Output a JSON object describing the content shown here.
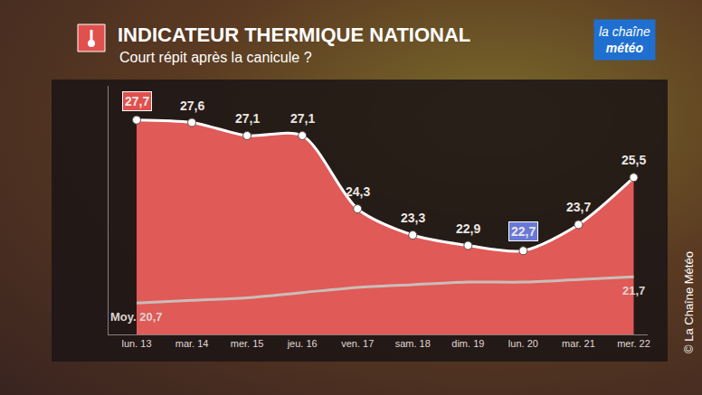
{
  "chart_data": {
    "type": "area",
    "title": "INDICATEUR THERMIQUE NATIONAL",
    "subtitle": "Court répit après la canicule ?",
    "logo": [
      "la chaîne",
      "météo"
    ],
    "copyright": "© La Chaîne Météo",
    "categories": [
      "lun. 13",
      "mar. 14",
      "mer. 15",
      "jeu. 16",
      "ven. 17",
      "sam. 18",
      "dim. 19",
      "lun. 20",
      "mar. 21",
      "mer. 22"
    ],
    "series": [
      {
        "type": "area",
        "color": "#e05a57",
        "values": [
          27.7,
          27.6,
          27.1,
          27.1,
          24.3,
          23.3,
          22.9,
          22.7,
          23.7,
          25.5
        ],
        "value_labels": [
          "27,7",
          "27,6",
          "27,1",
          "27,1",
          "24,3",
          "23,3",
          "22,9",
          "22,7",
          "23,7",
          "25,5"
        ]
      },
      {
        "type": "line",
        "color": "#cbbdb8",
        "values": [
          20.7,
          20.8,
          20.9,
          21.1,
          21.3,
          21.4,
          21.5,
          21.5,
          21.6,
          21.7
        ],
        "value_labels": [
          "Moy. 20,7",
          null,
          null,
          null,
          null,
          null,
          null,
          null,
          null,
          "21,7"
        ]
      }
    ],
    "ylim": [
      19.5,
      29
    ],
    "yticks": [],
    "grid": false,
    "data_labels": true,
    "tick_labels": "x"
  }
}
